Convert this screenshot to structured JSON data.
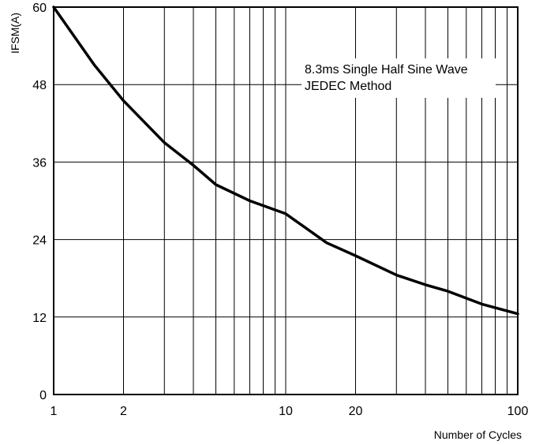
{
  "chart_data": {
    "type": "line",
    "title": "",
    "xlabel": "Number of Cycles",
    "ylabel": "IFSM(A)",
    "xscale": "log",
    "xlim": [
      1,
      100
    ],
    "ylim": [
      0,
      60
    ],
    "x_ticks": [
      1,
      2,
      10,
      20,
      100
    ],
    "x_tick_labels": [
      "1",
      "2",
      "10",
      "20",
      "100"
    ],
    "y_ticks": [
      0,
      12,
      24,
      36,
      48,
      60
    ],
    "y_tick_labels": [
      "0",
      "12",
      "24",
      "36",
      "48",
      "60"
    ],
    "grid": true,
    "annotation": [
      "8.3ms Single Half Sine Wave",
      "JEDEC Method"
    ],
    "series": [
      {
        "x": [
          1,
          1.5,
          2,
          3,
          4,
          5,
          7,
          10,
          15,
          20,
          30,
          40,
          50,
          70,
          100
        ],
        "values": [
          60,
          51,
          45.5,
          39,
          35.5,
          32.5,
          30,
          28,
          23.5,
          21.5,
          18.5,
          17,
          16,
          14,
          12.5
        ],
        "color": "#000000"
      }
    ]
  }
}
